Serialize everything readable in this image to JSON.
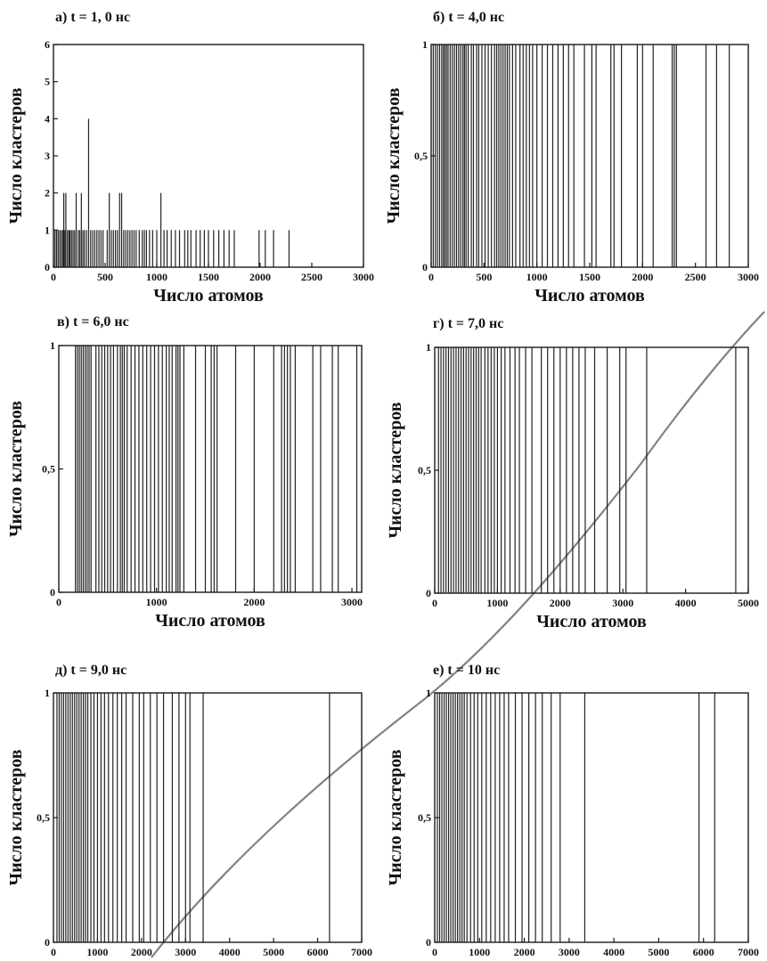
{
  "figure": {
    "background": "#ffffff",
    "bar_color": "#222222"
  },
  "chart_data": [
    {
      "type": "bar",
      "title": "а) t = 1, 0 нс",
      "xlabel": "Число атомов",
      "ylabel": "Число кластеров",
      "xlim": [
        0,
        3000
      ],
      "ylim": [
        0,
        6
      ],
      "xticks": [
        0,
        500,
        1000,
        1500,
        2000,
        2500,
        3000
      ],
      "yticks": [
        {
          "v": 0,
          "label": "0"
        },
        {
          "v": 1,
          "label": "1"
        },
        {
          "v": 2,
          "label": "2"
        },
        {
          "v": 3,
          "label": "3"
        },
        {
          "v": 4,
          "label": "4"
        },
        {
          "v": 5,
          "label": "5"
        },
        {
          "v": 6,
          "label": "6"
        }
      ],
      "x": [
        15,
        30,
        45,
        60,
        75,
        90,
        100,
        110,
        120,
        135,
        150,
        160,
        175,
        190,
        205,
        220,
        240,
        255,
        270,
        285,
        300,
        320,
        340,
        360,
        380,
        400,
        420,
        440,
        460,
        480,
        520,
        540,
        560,
        580,
        600,
        620,
        640,
        660,
        680,
        700,
        720,
        740,
        760,
        780,
        800,
        830,
        860,
        880,
        900,
        930,
        960,
        1000,
        1040,
        1070,
        1100,
        1140,
        1180,
        1220,
        1270,
        1300,
        1330,
        1380,
        1420,
        1460,
        1500,
        1550,
        1600,
        1650,
        1700,
        1750,
        1990,
        2050,
        2130,
        2280
      ],
      "values": [
        1,
        1,
        1,
        1,
        1,
        1,
        2,
        1,
        2,
        1,
        1,
        1,
        1,
        1,
        1,
        2,
        1,
        1,
        2,
        1,
        1,
        1,
        4,
        1,
        1,
        1,
        1,
        1,
        1,
        1,
        1,
        2,
        1,
        1,
        1,
        1,
        2,
        2,
        1,
        1,
        1,
        1,
        1,
        1,
        1,
        1,
        1,
        1,
        1,
        1,
        1,
        1,
        2,
        1,
        1,
        1,
        1,
        1,
        1,
        1,
        1,
        1,
        1,
        1,
        1,
        1,
        1,
        1,
        1,
        1,
        1,
        1,
        1,
        1
      ]
    },
    {
      "type": "bar",
      "title": "б) t = 4,0 нс",
      "xlabel": "Число атомов",
      "ylabel": "Число кластеров",
      "xlim": [
        0,
        3000
      ],
      "ylim": [
        0,
        1
      ],
      "xticks": [
        0,
        500,
        1000,
        1500,
        2000,
        2500,
        3000
      ],
      "yticks": [
        {
          "v": 0,
          "label": "0"
        },
        {
          "v": 0.5,
          "label": "0,5"
        },
        {
          "v": 1,
          "label": "1"
        }
      ],
      "x": [
        20,
        40,
        60,
        80,
        100,
        115,
        130,
        145,
        160,
        180,
        200,
        220,
        240,
        260,
        280,
        300,
        315,
        330,
        350,
        380,
        400,
        430,
        450,
        480,
        510,
        540,
        570,
        600,
        620,
        640,
        660,
        680,
        700,
        720,
        740,
        770,
        800,
        840,
        870,
        900,
        930,
        960,
        1000,
        1050,
        1100,
        1150,
        1200,
        1250,
        1300,
        1350,
        1450,
        1520,
        1560,
        1700,
        1730,
        1800,
        1950,
        2000,
        2100,
        2280,
        2300,
        2320,
        2600,
        2700,
        2820
      ],
      "values": [
        1,
        1,
        1,
        1,
        1,
        1,
        1,
        1,
        1,
        1,
        1,
        1,
        1,
        1,
        1,
        1,
        1,
        1,
        1,
        1,
        1,
        1,
        1,
        1,
        1,
        1,
        1,
        1,
        1,
        1,
        1,
        1,
        1,
        1,
        1,
        1,
        1,
        1,
        1,
        1,
        1,
        1,
        1,
        1,
        1,
        1,
        1,
        1,
        1,
        1,
        1,
        1,
        1,
        1,
        1,
        1,
        1,
        1,
        1,
        1,
        1,
        1,
        1,
        1,
        1
      ]
    },
    {
      "type": "bar",
      "title": "в) t = 6,0 нс",
      "xlabel": "Число атомов",
      "ylabel": "Число кластеров",
      "xlim": [
        0,
        3100
      ],
      "ylim": [
        0,
        1
      ],
      "xticks": [
        0,
        1000,
        2000,
        3000
      ],
      "yticks": [
        {
          "v": 0,
          "label": "0"
        },
        {
          "v": 0.5,
          "label": "0,5"
        },
        {
          "v": 1,
          "label": "1"
        }
      ],
      "x": [
        170,
        190,
        210,
        230,
        250,
        270,
        290,
        310,
        330,
        380,
        410,
        440,
        470,
        500,
        530,
        560,
        600,
        630,
        650,
        670,
        700,
        740,
        780,
        820,
        860,
        900,
        940,
        980,
        1020,
        1060,
        1100,
        1130,
        1160,
        1200,
        1220,
        1240,
        1280,
        1400,
        1500,
        1560,
        1590,
        1620,
        1810,
        2000,
        2200,
        2280,
        2310,
        2340,
        2370,
        2420,
        2600,
        2680,
        2800,
        2860,
        3050
      ],
      "values": [
        1,
        1,
        1,
        1,
        1,
        1,
        1,
        1,
        1,
        1,
        1,
        1,
        1,
        1,
        1,
        1,
        1,
        1,
        1,
        1,
        1,
        1,
        1,
        1,
        1,
        1,
        1,
        1,
        1,
        1,
        1,
        1,
        1,
        1,
        1,
        1,
        1,
        1,
        1,
        1,
        1,
        1,
        1,
        1,
        1,
        1,
        1,
        1,
        1,
        1,
        1,
        1,
        1,
        1,
        1
      ]
    },
    {
      "type": "bar",
      "title": "г) t = 7,0 нс",
      "xlabel": "Число атомов",
      "ylabel": "Число кластеров",
      "xlim": [
        0,
        5000
      ],
      "ylim": [
        0,
        1
      ],
      "xticks": [
        0,
        1000,
        2000,
        3000,
        4000,
        5000
      ],
      "yticks": [
        {
          "v": 0,
          "label": "0"
        },
        {
          "v": 0.5,
          "label": "0,5"
        },
        {
          "v": 1,
          "label": "1"
        }
      ],
      "x": [
        60,
        100,
        140,
        180,
        220,
        260,
        300,
        340,
        380,
        420,
        460,
        500,
        540,
        580,
        620,
        660,
        700,
        740,
        800,
        850,
        900,
        950,
        1000,
        1060,
        1120,
        1200,
        1280,
        1350,
        1450,
        1550,
        1700,
        1800,
        1900,
        2000,
        2100,
        2200,
        2300,
        2400,
        2550,
        2750,
        2950,
        3050,
        3380,
        4800
      ],
      "values": [
        1,
        1,
        1,
        1,
        1,
        1,
        1,
        1,
        1,
        1,
        1,
        1,
        1,
        1,
        1,
        1,
        1,
        1,
        1,
        1,
        1,
        1,
        1,
        1,
        1,
        1,
        1,
        1,
        1,
        1,
        1,
        1,
        1,
        1,
        1,
        1,
        1,
        1,
        1,
        1,
        1,
        1,
        1,
        1
      ]
    },
    {
      "type": "bar",
      "title": "д) t = 9,0 нс",
      "xlabel": "Число атомов",
      "ylabel": "Число кластеров",
      "xlim": [
        0,
        7000
      ],
      "ylim": [
        0,
        1
      ],
      "xticks": [
        0,
        1000,
        2000,
        3000,
        4000,
        5000,
        6000,
        7000
      ],
      "yticks": [
        {
          "v": 0,
          "label": "0"
        },
        {
          "v": 0.5,
          "label": "0,5"
        },
        {
          "v": 1,
          "label": "1"
        }
      ],
      "x": [
        80,
        130,
        180,
        230,
        280,
        330,
        380,
        430,
        480,
        530,
        580,
        630,
        680,
        730,
        780,
        850,
        920,
        1000,
        1080,
        1160,
        1250,
        1350,
        1450,
        1550,
        1650,
        1800,
        1950,
        2050,
        2200,
        2350,
        2500,
        2700,
        2850,
        3000,
        3100,
        3400,
        6270
      ],
      "values": [
        1,
        1,
        1,
        1,
        1,
        1,
        1,
        1,
        1,
        1,
        1,
        1,
        1,
        1,
        1,
        1,
        1,
        1,
        1,
        1,
        1,
        1,
        1,
        1,
        1,
        1,
        1,
        1,
        1,
        1,
        1,
        1,
        1,
        1,
        1,
        1,
        1
      ]
    },
    {
      "type": "bar",
      "title": "е) t = 10 нс",
      "xlabel": "Число атомов",
      "ylabel": "Число кластеров",
      "xlim": [
        0,
        7000
      ],
      "ylim": [
        0,
        1
      ],
      "xticks": [
        0,
        1000,
        2000,
        3000,
        4000,
        5000,
        6000,
        7000
      ],
      "yticks": [
        {
          "v": 0,
          "label": "0"
        },
        {
          "v": 0.5,
          "label": "0,5"
        },
        {
          "v": 1,
          "label": "1"
        }
      ],
      "x": [
        60,
        110,
        160,
        210,
        260,
        310,
        360,
        410,
        460,
        510,
        560,
        610,
        660,
        720,
        800,
        880,
        960,
        1050,
        1150,
        1250,
        1350,
        1450,
        1550,
        1650,
        1800,
        1950,
        2100,
        2250,
        2400,
        2600,
        2800,
        3350,
        5900,
        6250
      ],
      "values": [
        1,
        1,
        1,
        1,
        1,
        1,
        1,
        1,
        1,
        1,
        1,
        1,
        1,
        1,
        1,
        1,
        1,
        1,
        1,
        1,
        1,
        1,
        1,
        1,
        1,
        1,
        1,
        1,
        1,
        1,
        1,
        1,
        1,
        1
      ]
    }
  ]
}
